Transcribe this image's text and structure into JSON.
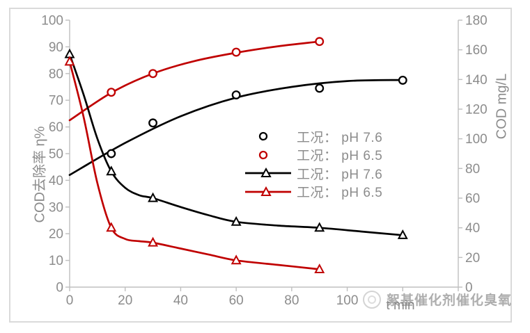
{
  "watermark": {
    "logo": "circle-logo",
    "text": "絮基催化剂催化臭氧"
  },
  "chart_data": {
    "type": "line",
    "title": "",
    "grid": false,
    "axis_color": "#bfbfbf",
    "label_color": "#8c8c8c",
    "x_axis": {
      "title": "t min",
      "range": [
        0,
        140
      ],
      "tick_interval": 20,
      "tick_labels": [
        "0",
        "20",
        "40",
        "60",
        "80",
        "100"
      ]
    },
    "y_left_axis": {
      "title": "COD去除率 η%",
      "range": [
        0,
        100
      ],
      "tick_interval": 10,
      "tick_labels": [
        "0",
        "10",
        "20",
        "30",
        "40",
        "50",
        "60",
        "70",
        "80",
        "90",
        "100"
      ]
    },
    "y_right_axis": {
      "title": "COD mg/L",
      "range": [
        0,
        180
      ],
      "tick_interval": 20,
      "tick_labels": [
        "0",
        "20",
        "40",
        "60",
        "80",
        "100",
        "120",
        "140",
        "160",
        "180"
      ]
    },
    "legend": {
      "position": "center-right"
    },
    "series": [
      {
        "name": "工况： pH 7.6",
        "marker": "circle",
        "color": "#000000",
        "axis": "left",
        "x": [
          15,
          30,
          60,
          90,
          120
        ],
        "y": [
          50,
          61.5,
          72,
          74.5,
          77.5
        ],
        "trend_x": [
          0,
          20,
          40,
          60,
          80,
          100,
          120
        ],
        "trend_y": [
          42,
          54,
          64,
          71,
          75,
          77.2,
          77.6
        ]
      },
      {
        "name": "工况： pH 6.5",
        "marker": "circle",
        "color": "#c00000",
        "axis": "left",
        "x": [
          15,
          30,
          60,
          90
        ],
        "y": [
          73,
          80,
          88,
          92
        ],
        "trend_x": [
          0,
          15,
          30,
          45,
          60,
          75,
          90
        ],
        "trend_y": [
          62.5,
          72.8,
          80,
          84.7,
          87.8,
          90.2,
          92
        ]
      },
      {
        "name": "工况： pH 7.6",
        "marker": "triangle",
        "color": "#000000",
        "axis": "right",
        "x": [
          0,
          15,
          30,
          60,
          90,
          120
        ],
        "y": [
          157,
          78,
          60,
          44,
          40,
          35
        ],
        "trend_x": [
          0,
          5,
          10,
          15,
          20,
          25,
          30,
          40,
          50,
          60,
          75,
          90,
          105,
          120
        ],
        "trend_y": [
          157,
          130,
          100,
          78,
          67,
          62,
          60,
          54,
          48.5,
          44,
          41.5,
          40,
          37.5,
          35
        ]
      },
      {
        "name": "工况： pH 6.5",
        "marker": "triangle",
        "color": "#c00000",
        "axis": "right",
        "x": [
          0,
          15,
          30,
          60,
          90
        ],
        "y": [
          152,
          40,
          30,
          18,
          12
        ],
        "trend_x": [
          0,
          5,
          10,
          15,
          20,
          25,
          30,
          40,
          50,
          60,
          75,
          90
        ],
        "trend_y": [
          152,
          115,
          70,
          40,
          32.5,
          31,
          30,
          26,
          22,
          18,
          15,
          12
        ]
      }
    ]
  }
}
